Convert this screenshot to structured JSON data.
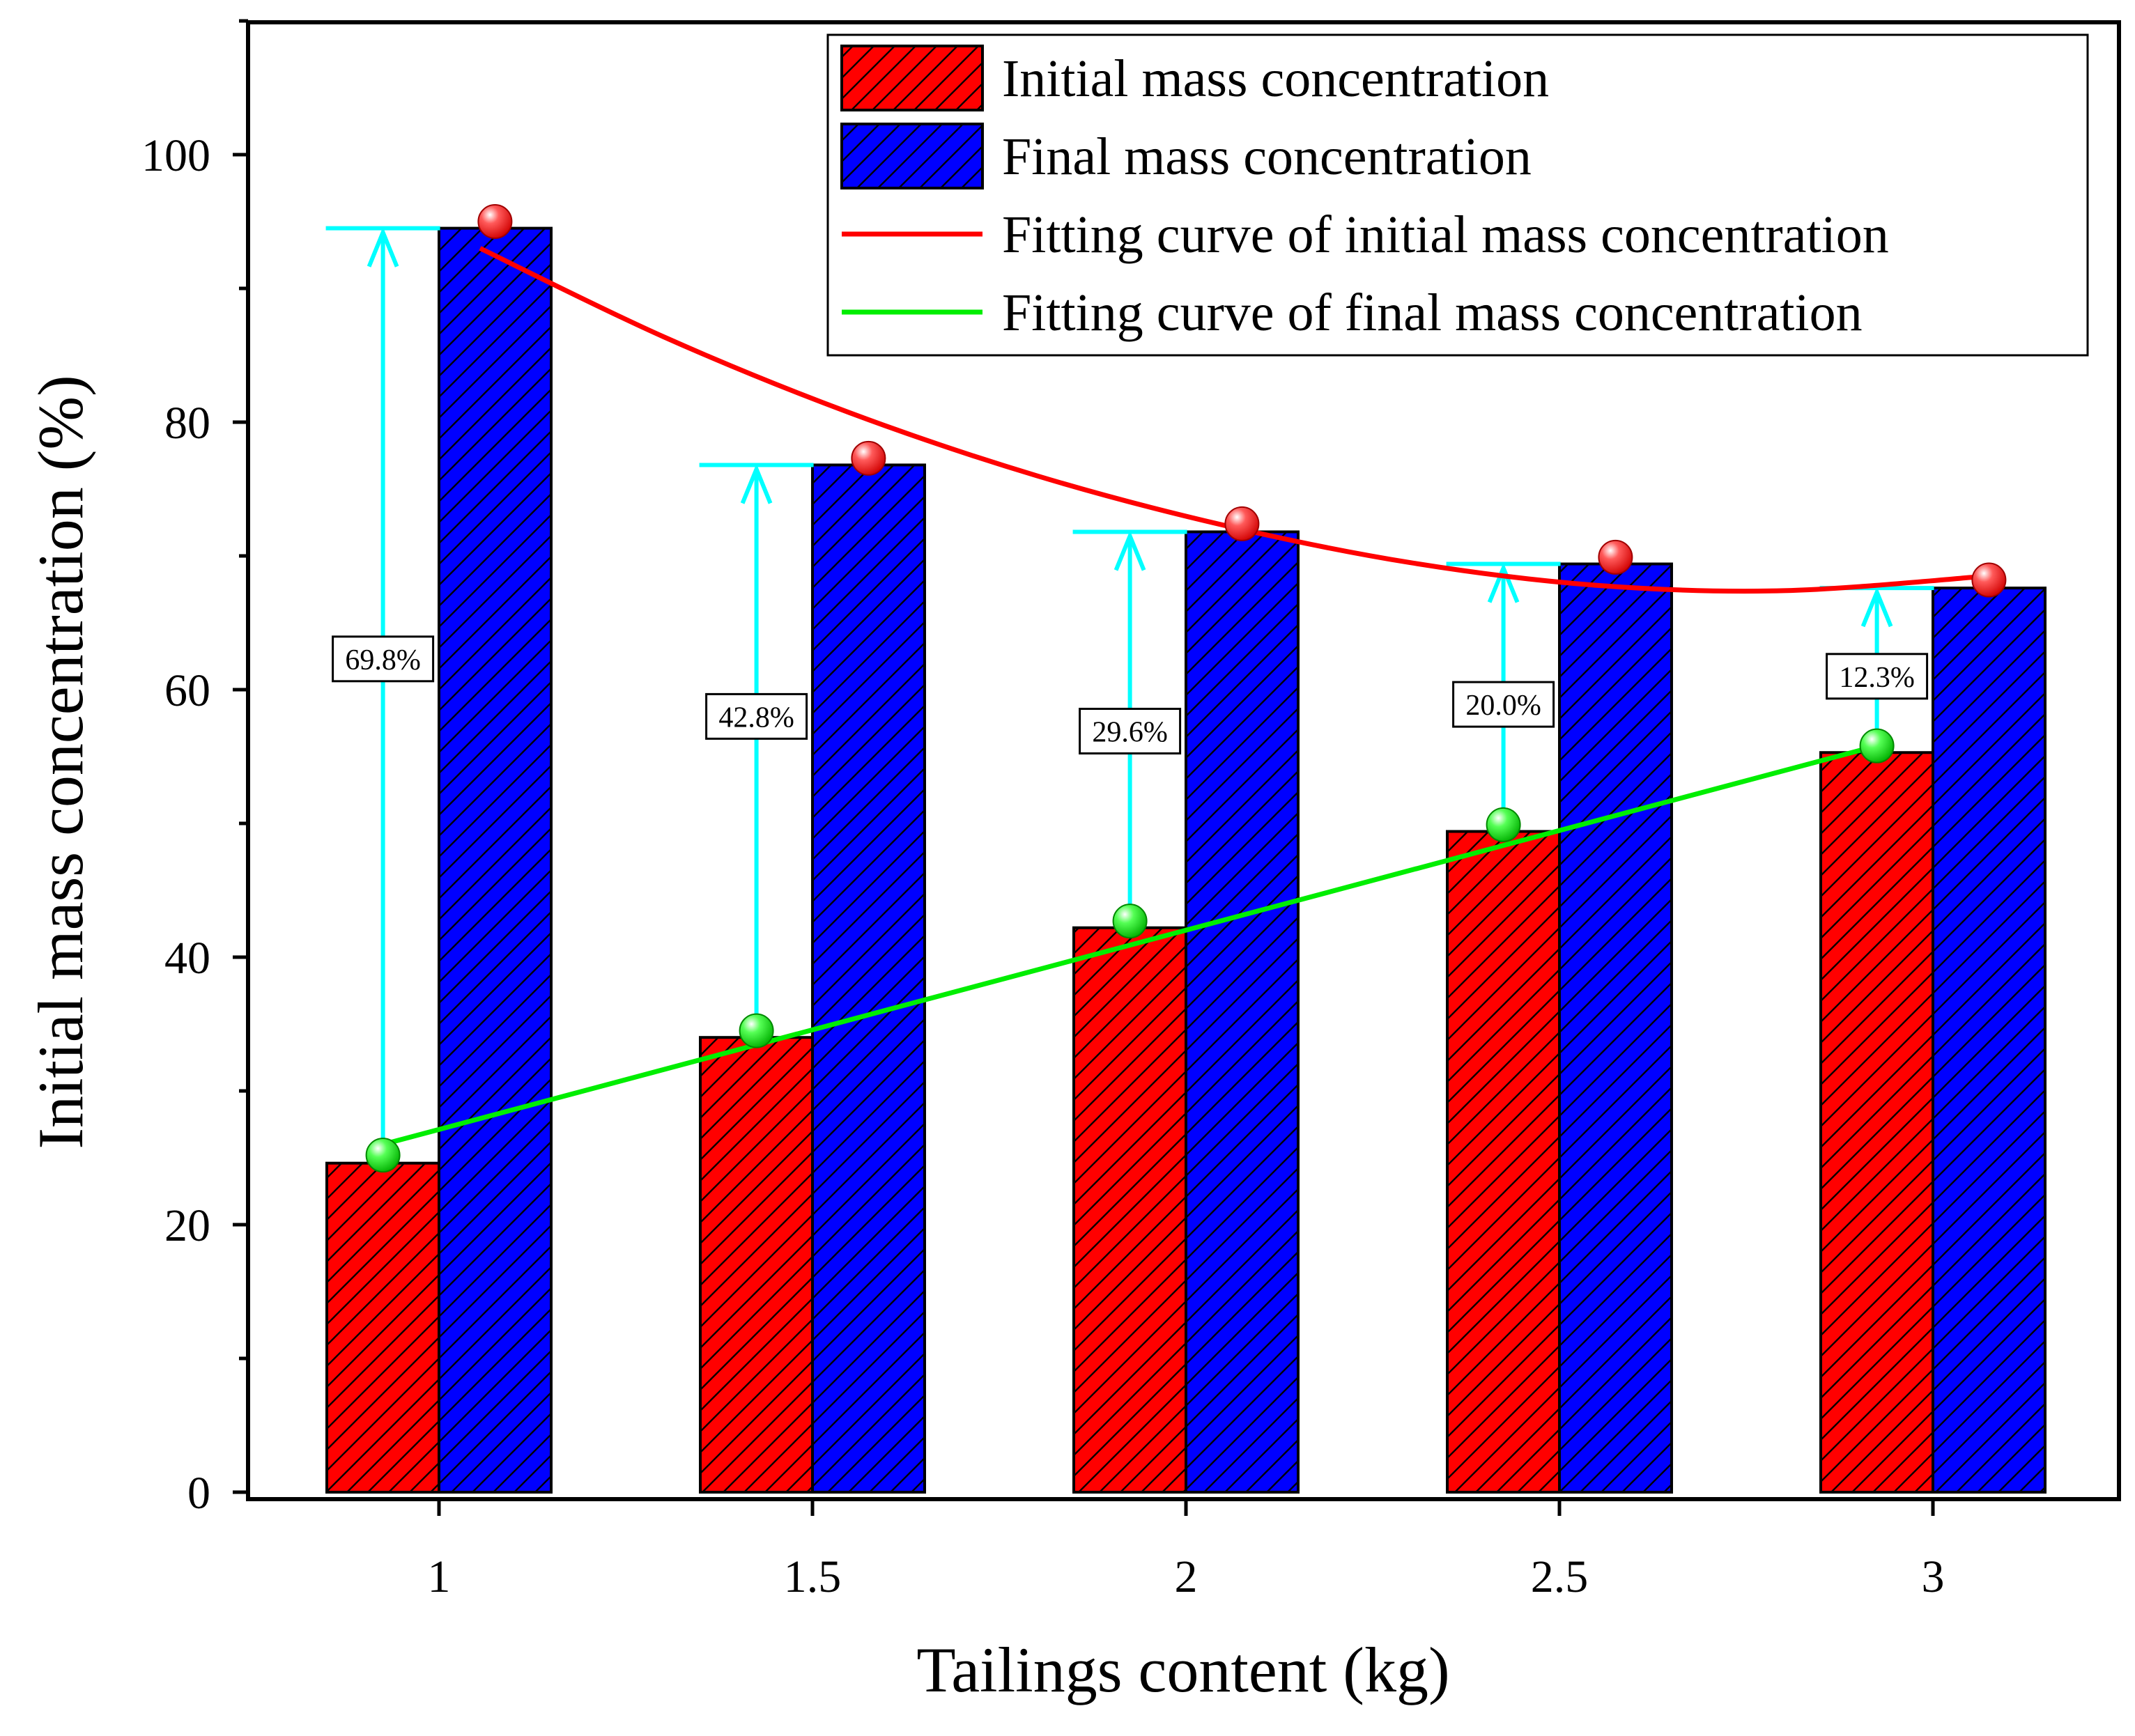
{
  "chart_data": {
    "type": "bar",
    "title": "",
    "xlabel": "Tailings content (kg)",
    "ylabel": "Initial mass concentration (%)",
    "ylim": [
      0,
      110
    ],
    "yticks": [
      0,
      20,
      40,
      60,
      80,
      100
    ],
    "ytick_labels": [
      "0",
      "20",
      "40",
      "60",
      "80",
      "100"
    ],
    "categories": [
      "1",
      "1.5",
      "2",
      "2.5",
      "3"
    ],
    "series": [
      {
        "name": "Initial mass concentration",
        "values": [
          24.6,
          34.0,
          42.2,
          49.4,
          55.3
        ],
        "color": "#ff0000"
      },
      {
        "name": "Final mass concentration",
        "values": [
          94.5,
          76.8,
          71.8,
          69.4,
          67.6
        ],
        "color": "#0000ff"
      }
    ],
    "fit_curves": [
      {
        "name": "Fitting curve of initial mass concentration",
        "color": "#ff0000",
        "x": [
          1.075,
          1.575,
          2.075,
          2.575,
          3.075
        ],
        "points": [
          95.0,
          77.3,
          72.4,
          69.9,
          68.2
        ],
        "curve": [
          [
            1.055,
            93.0
          ],
          [
            1.3,
            86.4
          ],
          [
            1.55,
            80.7
          ],
          [
            1.8,
            76.0
          ],
          [
            2.05,
            72.3
          ],
          [
            2.3,
            69.5
          ],
          [
            2.55,
            67.8
          ],
          [
            2.8,
            67.4
          ],
          [
            3.075,
            68.5
          ]
        ]
      },
      {
        "name": "Fitting curve of final mass concentration",
        "color": "#00ee00",
        "x": [
          0.925,
          1.425,
          1.925,
          2.425,
          2.925
        ],
        "points": [
          25.2,
          34.5,
          42.7,
          49.9,
          55.8
        ],
        "curve": [
          [
            0.925,
            26.0
          ],
          [
            2.925,
            55.8
          ]
        ]
      }
    ],
    "differences": [
      {
        "label": "69.8%",
        "x": 0.925,
        "from": 25.2,
        "to": 94.5,
        "label_y": 62.3
      },
      {
        "label": "42.8%",
        "x": 1.425,
        "from": 34.5,
        "to": 76.8,
        "label_y": 58.0
      },
      {
        "label": "29.6%",
        "x": 1.925,
        "from": 42.7,
        "to": 71.8,
        "label_y": 56.9
      },
      {
        "label": "20.0%",
        "x": 2.425,
        "from": 49.9,
        "to": 69.4,
        "label_y": 58.9
      },
      {
        "label": "12.3%",
        "x": 2.925,
        "from": 55.8,
        "to": 67.6,
        "label_y": 61.0
      }
    ],
    "legend": {
      "position": "top-right",
      "entries": [
        {
          "label": "Initial mass concentration",
          "kind": "bar",
          "color": "#ff0000"
        },
        {
          "label": "Final mass concentration",
          "kind": "bar",
          "color": "#0000ff"
        },
        {
          "label": "Fitting curve of initial mass concentration",
          "kind": "line",
          "color": "#ff0000"
        },
        {
          "label": "Fitting curve of final mass concentration",
          "kind": "line",
          "color": "#00ee00"
        }
      ]
    },
    "annotation_color": "#00ffff",
    "grid": false
  }
}
